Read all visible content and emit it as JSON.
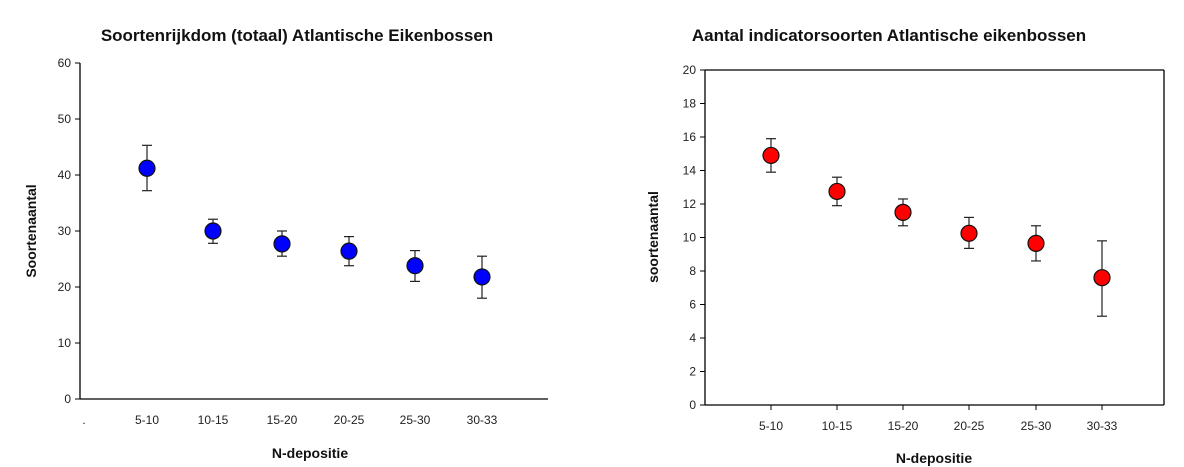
{
  "chart_data": [
    {
      "type": "scatter",
      "title": "Soortenrijkdom (totaal) Atlantische Eikenbossen",
      "xlabel": "N-depositie",
      "ylabel": "Soortenaantal",
      "ylim": [
        0,
        60
      ],
      "yticks": [
        0,
        10,
        20,
        30,
        40,
        50,
        60
      ],
      "categories": [
        ".",
        "5-10",
        "10-15",
        "15-20",
        "20-25",
        "25-30",
        "30-33"
      ],
      "series": [
        {
          "color": "#0000ff",
          "points": [
            {
              "x": "5-10",
              "y": 41.2,
              "err_low": 37.2,
              "err_high": 45.3
            },
            {
              "x": "10-15",
              "y": 30.0,
              "err_low": 27.8,
              "err_high": 32.1
            },
            {
              "x": "15-20",
              "y": 27.7,
              "err_low": 25.5,
              "err_high": 30.0
            },
            {
              "x": "20-25",
              "y": 26.4,
              "err_low": 23.8,
              "err_high": 29.0
            },
            {
              "x": "25-30",
              "y": 23.8,
              "err_low": 21.0,
              "err_high": 26.5
            },
            {
              "x": "30-33",
              "y": 21.8,
              "err_low": 18.0,
              "err_high": 25.5
            }
          ]
        }
      ]
    },
    {
      "type": "scatter",
      "title": "Aantal indicatorsoorten Atlantische eikenbossen",
      "xlabel": "N-depositie",
      "ylabel": "soortenaantal",
      "ylim": [
        0,
        20
      ],
      "yticks": [
        0,
        2,
        4,
        6,
        8,
        10,
        12,
        14,
        16,
        18,
        20
      ],
      "categories": [
        "5-10",
        "10-15",
        "15-20",
        "20-25",
        "25-30",
        "30-33"
      ],
      "series": [
        {
          "color": "#ff0000",
          "points": [
            {
              "x": "5-10",
              "y": 14.9,
              "err_low": 13.9,
              "err_high": 15.9
            },
            {
              "x": "10-15",
              "y": 12.75,
              "err_low": 11.9,
              "err_high": 13.6
            },
            {
              "x": "15-20",
              "y": 11.5,
              "err_low": 10.7,
              "err_high": 12.3
            },
            {
              "x": "20-25",
              "y": 10.25,
              "err_low": 9.35,
              "err_high": 11.2
            },
            {
              "x": "25-30",
              "y": 9.65,
              "err_low": 8.6,
              "err_high": 10.7
            },
            {
              "x": "30-33",
              "y": 7.6,
              "err_low": 5.3,
              "err_high": 9.8
            }
          ]
        }
      ]
    }
  ]
}
